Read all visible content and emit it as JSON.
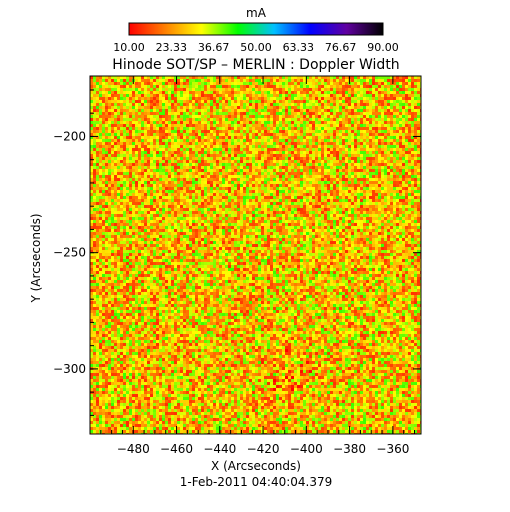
{
  "chart_data": {
    "type": "heatmap",
    "title": "Hinode SOT/SP – MERLIN : Doppler Width",
    "xlabel": "X (Arcseconds)",
    "ylabel": "Y (Arcseconds)",
    "date": "1-Feb-2011 04:40:04.379",
    "colorbar": {
      "label": "mA",
      "range": [
        10.0,
        90.0
      ],
      "tick_labels": [
        "10.00",
        "23.33",
        "36.67",
        "50.00",
        "63.33",
        "76.67",
        "90.00"
      ],
      "tick_values": [
        10.0,
        23.33,
        36.67,
        50.0,
        63.33,
        76.67,
        90.0
      ],
      "colormap_stops": [
        "#ff0000",
        "#ff8000",
        "#ffff00",
        "#00ff00",
        "#00c0ff",
        "#0000ff",
        "#6000a0",
        "#000000"
      ]
    },
    "xlim": [
      -500,
      -347
    ],
    "ylim": [
      -328,
      -174
    ],
    "x_ticks": [
      -480,
      -460,
      -440,
      -420,
      -400,
      -380,
      -360
    ],
    "x_tick_labels": [
      "−480",
      "−460",
      "−440",
      "−420",
      "−400",
      "−380",
      "−360"
    ],
    "y_ticks": [
      -300,
      -250,
      -200
    ],
    "y_tick_labels": [
      "−300",
      "−250",
      "−200"
    ],
    "field_description": "Noisy map of Doppler width values mostly between 15 and 40 mA (red/orange/yellow/green speckle), with a cluster of low (red) values near X≈-410, Y≈-300"
  }
}
